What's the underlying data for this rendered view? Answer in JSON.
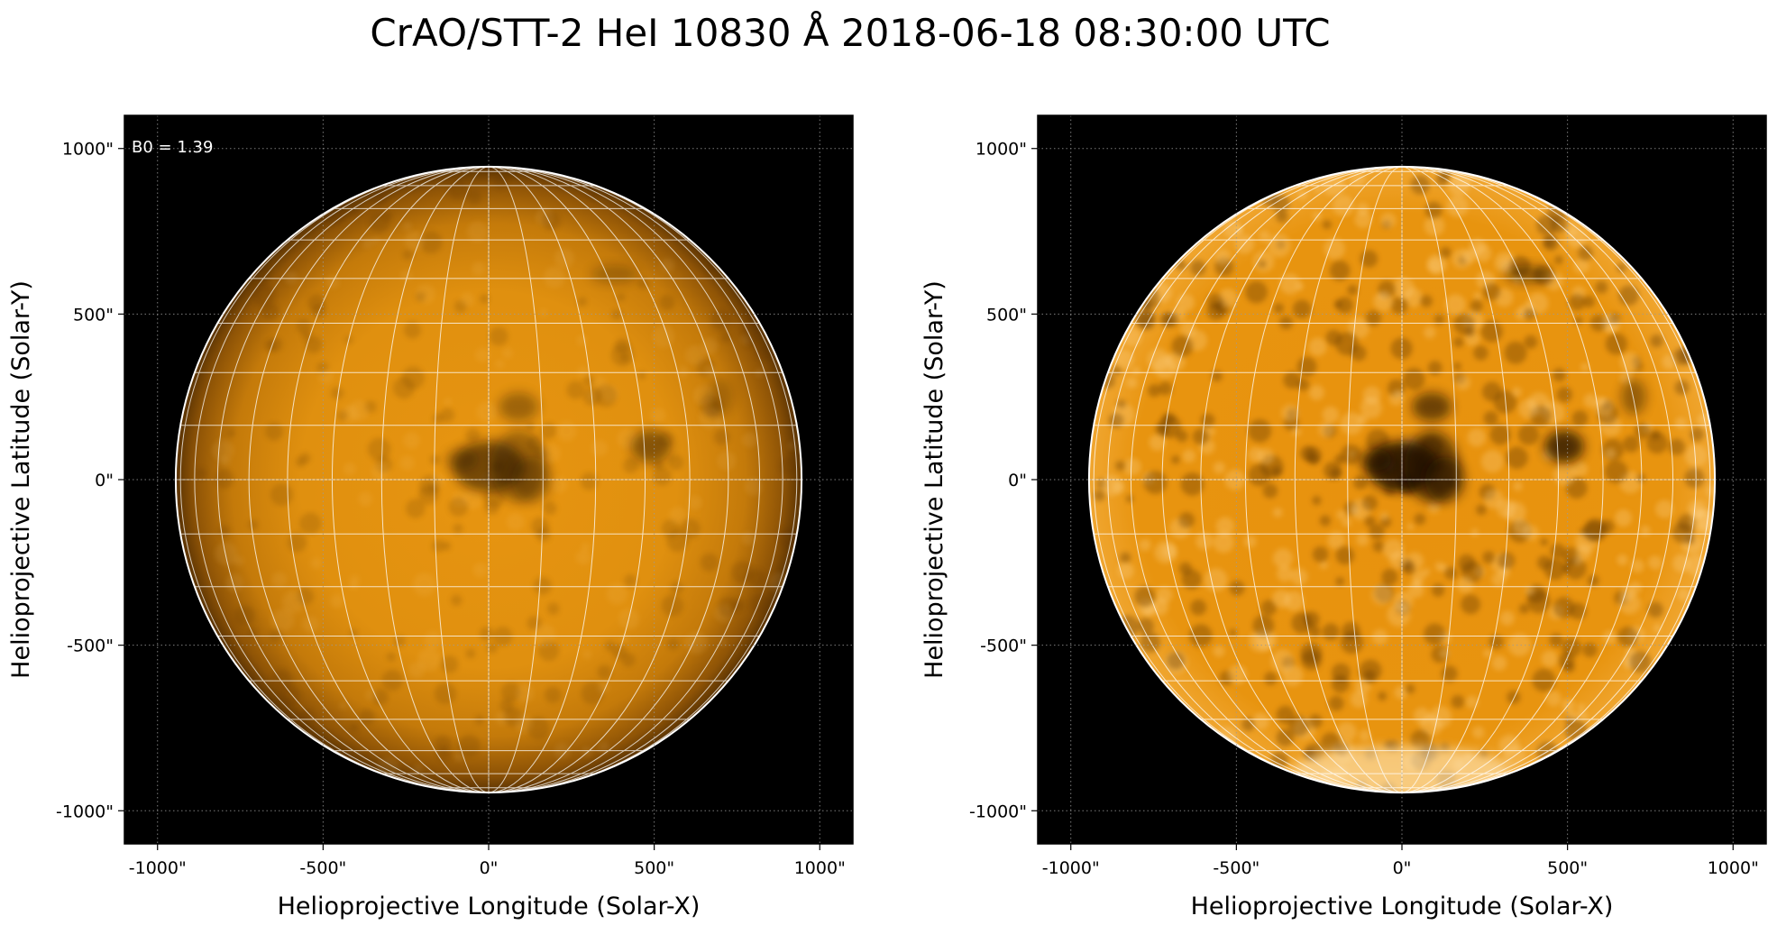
{
  "title": "CrAO/STT-2 HeI 10830 Å 2018-06-18 08:30:00 UTC",
  "colors": {
    "background": "#000000",
    "disk": "#e8900c",
    "limb_line": "#ffffff",
    "grid": "#ffffff"
  },
  "panels": [
    {
      "name": "left",
      "annotation": "B0 = 1.39",
      "xlabel": "Helioprojective Longitude (Solar-X)",
      "ylabel": "Helioprojective Latitude (Solar-Y)",
      "xticks": [
        "-1000\"",
        "-500\"",
        "0\"",
        "500\"",
        "1000\""
      ],
      "yticks": [
        "1000\"",
        "500\"",
        "0\"",
        "-500\"",
        "-1000\""
      ],
      "xlim": [
        -1100,
        1100
      ],
      "ylim": [
        -1100,
        1100
      ],
      "disk_radius_arcsec": 945,
      "image_style": "limb-darkened"
    },
    {
      "name": "right",
      "annotation": "",
      "xlabel": "Helioprojective Longitude (Solar-X)",
      "ylabel": "Helioprojective Latitude (Solar-Y)",
      "xticks": [
        "-1000\"",
        "-500\"",
        "0\"",
        "500\"",
        "1000\""
      ],
      "yticks": [
        "1000\"",
        "500\"",
        "0\"",
        "-500\"",
        "-1000\""
      ],
      "xlim": [
        -1100,
        1100
      ],
      "ylim": [
        -1100,
        1100
      ],
      "disk_radius_arcsec": 945,
      "image_style": "limb-corrected"
    }
  ]
}
